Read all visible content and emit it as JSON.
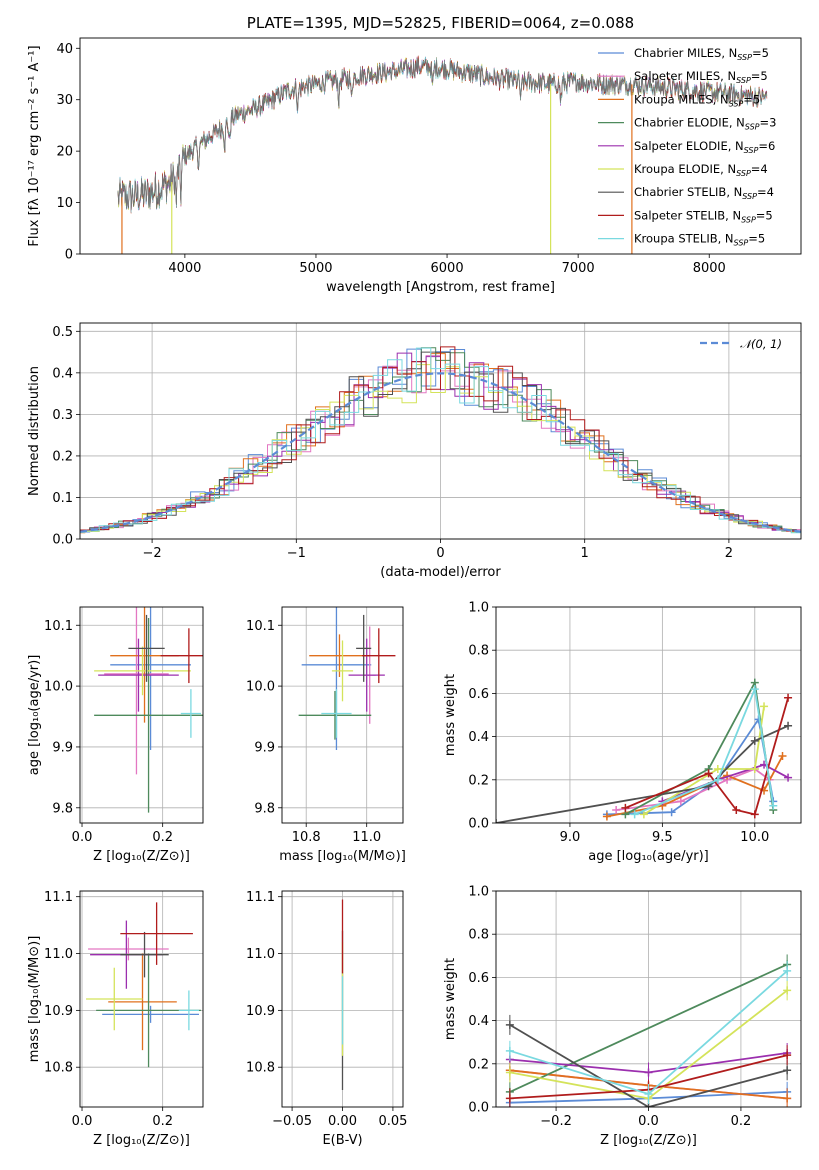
{
  "chart_data": [
    {
      "id": "spectrum",
      "type": "line",
      "title": "PLATE=1395, MJD=52825, FIBERID=0064, z=0.088",
      "xlabel": "wavelength [Angstrom, rest frame]",
      "ylabel": "Flux [fλ 10⁻¹⁷ erg cm⁻² s⁻¹ A⁻¹]",
      "xlim": [
        3200,
        8700
      ],
      "ylim": [
        0,
        42
      ],
      "xticks": [
        4000,
        5000,
        6000,
        7000,
        8000
      ],
      "yticks": [
        0,
        10,
        20,
        30,
        40
      ],
      "legend_position": "top-right",
      "legend": [
        {
          "name": "Chabrier MILES",
          "nssp": "5",
          "color": "#5b8bd6"
        },
        {
          "name": "Salpeter MILES",
          "nssp": "5",
          "color": "#e377c2"
        },
        {
          "name": "Kroupa MILES",
          "nssp": "5",
          "color": "#e0701e"
        },
        {
          "name": "Chabrier ELODIE",
          "nssp": "3",
          "color": "#4e8a5c"
        },
        {
          "name": "Salpeter ELODIE",
          "nssp": "6",
          "color": "#9b2fae"
        },
        {
          "name": "Kroupa ELODIE",
          "nssp": "4",
          "color": "#d4e35a"
        },
        {
          "name": "Chabrier STELIB",
          "nssp": "4",
          "color": "#505050"
        },
        {
          "name": "Salpeter STELIB",
          "nssp": "5",
          "color": "#b01c1c"
        },
        {
          "name": "Kroupa STELIB",
          "nssp": "5",
          "color": "#7ad9e0"
        }
      ],
      "continuum": {
        "x": [
          3500,
          3700,
          3900,
          4000,
          4200,
          4400,
          4600,
          4800,
          5000,
          5200,
          5400,
          5600,
          5800,
          6000,
          6200,
          6400,
          6600,
          6800,
          7000,
          7200,
          7400,
          7600,
          7800,
          8000,
          8200,
          8400
        ],
        "y": [
          11,
          11.5,
          14,
          19,
          23,
          27,
          29,
          32,
          33,
          34,
          35,
          35.5,
          36.5,
          36,
          35,
          34,
          33.5,
          33,
          33.5,
          33,
          33,
          32.5,
          32,
          31.5,
          31,
          30.5
        ]
      },
      "vertical_drops": [
        {
          "x": 6790,
          "color": "#d4e35a"
        },
        {
          "x": 7410,
          "color": "#e0701e"
        },
        {
          "x": 3520,
          "color": "#e0701e"
        },
        {
          "x": 3900,
          "color": "#d4e35a"
        }
      ]
    },
    {
      "id": "residuals",
      "type": "line",
      "xlabel": "(data-model)/error",
      "ylabel": "Normed distribution",
      "xlim": [
        -2.5,
        2.5
      ],
      "ylim": [
        0,
        0.52
      ],
      "xticks": [
        -2,
        -1,
        0,
        1,
        2
      ],
      "yticks": [
        0.0,
        0.1,
        0.2,
        0.3,
        0.4,
        0.5
      ],
      "grid": true,
      "legend_position": "top-right",
      "legend": [
        {
          "name": "𝒩(0, 1)",
          "color": "#5b8bd6",
          "style": "dashed"
        }
      ],
      "bin_width": 0.1
    },
    {
      "id": "z-age",
      "type": "scatter",
      "xlabel": "Z [log₁₀(Z/Z⊙)]",
      "ylabel": "age  [log₁₀(age/yr)]",
      "xlim": [
        -0.005,
        0.3
      ],
      "ylim": [
        9.775,
        10.13
      ],
      "xticks": [
        0.0,
        0.2
      ],
      "yticks": [
        9.8,
        9.9,
        10.0,
        10.1
      ],
      "grid": true,
      "points": [
        {
          "x": 0.17,
          "y": 10.035,
          "xerr": 0.1,
          "yerr": 0.14,
          "color": "#5b8bd6"
        },
        {
          "x": 0.135,
          "y": 10.02,
          "xerr": 0.08,
          "yerr": 0.165,
          "color": "#e377c2"
        },
        {
          "x": 0.155,
          "y": 10.05,
          "xerr": 0.085,
          "yerr": 0.11,
          "color": "#e0701e"
        },
        {
          "x": 0.165,
          "y": 9.952,
          "xerr": 0.135,
          "yerr": 0.16,
          "color": "#4e8a5c"
        },
        {
          "x": 0.14,
          "y": 10.018,
          "xerr": 0.1,
          "yerr": 0.06,
          "color": "#9b2fae"
        },
        {
          "x": 0.15,
          "y": 10.025,
          "xerr": 0.12,
          "yerr": 0.04,
          "color": "#d4e35a"
        },
        {
          "x": 0.16,
          "y": 10.062,
          "xerr": 0.045,
          "yerr": 0.055,
          "color": "#505050"
        },
        {
          "x": 0.265,
          "y": 10.05,
          "xerr": 0.07,
          "yerr": 0.045,
          "color": "#b01c1c"
        },
        {
          "x": 0.27,
          "y": 9.955,
          "xerr": 0.025,
          "yerr": 0.04,
          "color": "#7ad9e0"
        }
      ]
    },
    {
      "id": "mass-age",
      "type": "scatter",
      "xlabel": "mass [log₁₀(M/M⊙)]",
      "xlim": [
        10.72,
        11.12
      ],
      "ylim": [
        9.775,
        10.13
      ],
      "xticks": [
        10.8,
        11.0
      ],
      "yticks": [
        9.8,
        9.9,
        10.0,
        10.1
      ],
      "grid": true,
      "points": [
        {
          "x": 10.9,
          "y": 10.035,
          "xerr": 0.115,
          "yerr": 0.14,
          "color": "#5b8bd6"
        },
        {
          "x": 11.01,
          "y": 10.018,
          "xerr": 0.02,
          "yerr": 0.08,
          "color": "#e377c2"
        },
        {
          "x": 10.91,
          "y": 10.05,
          "xerr": 0.1,
          "yerr": 0.035,
          "color": "#e0701e"
        },
        {
          "x": 10.895,
          "y": 9.952,
          "xerr": 0.12,
          "yerr": 0.04,
          "color": "#4e8a5c"
        },
        {
          "x": 11.0,
          "y": 10.018,
          "xerr": 0.06,
          "yerr": 0.06,
          "color": "#9b2fae"
        },
        {
          "x": 10.92,
          "y": 10.025,
          "xerr": 0.035,
          "yerr": 0.05,
          "color": "#d4e35a"
        },
        {
          "x": 10.99,
          "y": 10.062,
          "xerr": 0.025,
          "yerr": 0.055,
          "color": "#505050"
        },
        {
          "x": 11.04,
          "y": 10.05,
          "xerr": 0.055,
          "yerr": 0.045,
          "color": "#b01c1c"
        },
        {
          "x": 10.9,
          "y": 9.955,
          "xerr": 0.05,
          "yerr": 0.04,
          "color": "#7ad9e0"
        }
      ]
    },
    {
      "id": "age-weight",
      "type": "line",
      "xlabel": "age  [log₁₀(age/yr)]",
      "ylabel": "mass weight",
      "xlim": [
        8.6,
        10.25
      ],
      "ylim": [
        0,
        1.0
      ],
      "xticks": [
        9.0,
        9.5,
        10.0
      ],
      "yticks": [
        0.0,
        0.2,
        0.4,
        0.6,
        0.8,
        1.0
      ],
      "grid": true,
      "series": [
        {
          "color": "#5b8bd6",
          "x": [
            9.2,
            9.55,
            9.8,
            10.02,
            10.1
          ],
          "y": [
            0.04,
            0.05,
            0.2,
            0.48,
            0.1
          ]
        },
        {
          "color": "#e377c2",
          "x": [
            9.25,
            9.6,
            9.85,
            10.0,
            10.08
          ],
          "y": [
            0.06,
            0.1,
            0.2,
            0.25,
            0.2
          ]
        },
        {
          "color": "#e0701e",
          "x": [
            9.2,
            9.5,
            9.85,
            10.05,
            10.15
          ],
          "y": [
            0.03,
            0.08,
            0.22,
            0.15,
            0.31
          ]
        },
        {
          "color": "#4e8a5c",
          "x": [
            9.3,
            9.75,
            10.0,
            10.1
          ],
          "y": [
            0.04,
            0.25,
            0.65,
            0.06
          ]
        },
        {
          "color": "#9b2fae",
          "x": [
            9.5,
            9.8,
            10.05,
            10.18
          ],
          "y": [
            0.1,
            0.2,
            0.27,
            0.21
          ]
        },
        {
          "color": "#d4e35a",
          "x": [
            9.4,
            9.8,
            10.0,
            10.05
          ],
          "y": [
            0.04,
            0.25,
            0.25,
            0.54
          ]
        },
        {
          "color": "#505050",
          "x": [
            8.6,
            9.75,
            10.0,
            10.18
          ],
          "y": [
            0.0,
            0.17,
            0.38,
            0.45
          ]
        },
        {
          "color": "#b01c1c",
          "x": [
            9.3,
            9.75,
            9.9,
            10.0,
            10.18
          ],
          "y": [
            0.07,
            0.23,
            0.06,
            0.04,
            0.58
          ]
        },
        {
          "color": "#7ad9e0",
          "x": [
            9.35,
            9.8,
            10.0,
            10.1
          ],
          "y": [
            0.04,
            0.2,
            0.62,
            0.08
          ]
        }
      ]
    },
    {
      "id": "z-mass",
      "type": "scatter",
      "xlabel": "Z [log₁₀(Z/Z⊙)]",
      "ylabel": "mass [log₁₀(M/M⊙)]",
      "xlim": [
        -0.005,
        0.3
      ],
      "ylim": [
        10.73,
        11.11
      ],
      "xticks": [
        0.0,
        0.2
      ],
      "yticks": [
        10.8,
        10.9,
        11.0,
        11.1
      ],
      "grid": true,
      "points": [
        {
          "x": 0.17,
          "y": 10.893,
          "xerr": 0.12,
          "yerr": 0.015,
          "color": "#5b8bd6"
        },
        {
          "x": 0.115,
          "y": 11.008,
          "xerr": 0.1,
          "yerr": 0.02,
          "color": "#e377c2"
        },
        {
          "x": 0.15,
          "y": 10.915,
          "xerr": 0.085,
          "yerr": 0.085,
          "color": "#e0701e"
        },
        {
          "x": 0.165,
          "y": 10.9,
          "xerr": 0.13,
          "yerr": 0.1,
          "color": "#4e8a5c"
        },
        {
          "x": 0.11,
          "y": 10.998,
          "xerr": 0.09,
          "yerr": 0.06,
          "color": "#9b2fae"
        },
        {
          "x": 0.08,
          "y": 10.92,
          "xerr": 0.07,
          "yerr": 0.055,
          "color": "#d4e35a"
        },
        {
          "x": 0.155,
          "y": 10.998,
          "xerr": 0.06,
          "yerr": 0.04,
          "color": "#505050"
        },
        {
          "x": 0.185,
          "y": 11.035,
          "xerr": 0.09,
          "yerr": 0.055,
          "color": "#b01c1c"
        },
        {
          "x": 0.265,
          "y": 10.9,
          "xerr": 0.025,
          "yerr": 0.035,
          "color": "#7ad9e0"
        }
      ]
    },
    {
      "id": "ebv-mass",
      "type": "scatter",
      "xlabel": "E(B-V)",
      "xlim": [
        -0.06,
        0.06
      ],
      "ylim": [
        10.73,
        11.11
      ],
      "xticks": [
        -0.05,
        0.0,
        0.05
      ],
      "yticks": [
        10.8,
        10.9,
        11.0,
        11.1
      ],
      "grid": true,
      "points": [
        {
          "x": 0.0,
          "y": 10.9,
          "xerr": 0,
          "yerr": 0.14,
          "color": "#505050"
        },
        {
          "x": 0.0,
          "y": 10.92,
          "xerr": 0,
          "yerr": 0.1,
          "color": "#d4e35a"
        },
        {
          "x": 0.0,
          "y": 10.9,
          "xerr": 0,
          "yerr": 0.06,
          "color": "#7ad9e0"
        },
        {
          "x": 0.0,
          "y": 11.03,
          "xerr": 0,
          "yerr": 0.065,
          "color": "#b01c1c"
        }
      ]
    },
    {
      "id": "z-weight",
      "type": "line",
      "xlabel": "Z [log₁₀(Z/Z⊙)]",
      "ylabel": "mass weight",
      "xlim": [
        -0.33,
        0.33
      ],
      "ylim": [
        0,
        1.0
      ],
      "xticks": [
        -0.2,
        0.0,
        0.2
      ],
      "yticks": [
        0.0,
        0.2,
        0.4,
        0.6,
        0.8,
        1.0
      ],
      "grid": true,
      "series": [
        {
          "color": "#5b8bd6",
          "x": [
            -0.3,
            0.0,
            0.3
          ],
          "y": [
            0.02,
            0.04,
            0.07
          ]
        },
        {
          "color": "#e377c2",
          "x": [
            -0.3,
            0.0,
            0.3
          ],
          "y": [
            0.17,
            0.1,
            0.04
          ]
        },
        {
          "color": "#e0701e",
          "x": [
            -0.3,
            0.0,
            0.3
          ],
          "y": [
            0.17,
            0.1,
            0.04
          ]
        },
        {
          "color": "#4e8a5c",
          "x": [
            -0.3,
            0.3
          ],
          "y": [
            0.07,
            0.66
          ]
        },
        {
          "color": "#9b2fae",
          "x": [
            -0.3,
            0.0,
            0.3
          ],
          "y": [
            0.22,
            0.16,
            0.25
          ]
        },
        {
          "color": "#d4e35a",
          "x": [
            -0.3,
            0.0,
            0.3
          ],
          "y": [
            0.16,
            0.04,
            0.54
          ]
        },
        {
          "color": "#505050",
          "x": [
            -0.3,
            0.0,
            0.3
          ],
          "y": [
            0.38,
            0.0,
            0.17
          ]
        },
        {
          "color": "#b01c1c",
          "x": [
            -0.3,
            0.0,
            0.3
          ],
          "y": [
            0.04,
            0.08,
            0.24
          ]
        },
        {
          "color": "#7ad9e0",
          "x": [
            -0.3,
            0.0,
            0.3
          ],
          "y": [
            0.26,
            0.06,
            0.63
          ]
        }
      ]
    }
  ]
}
